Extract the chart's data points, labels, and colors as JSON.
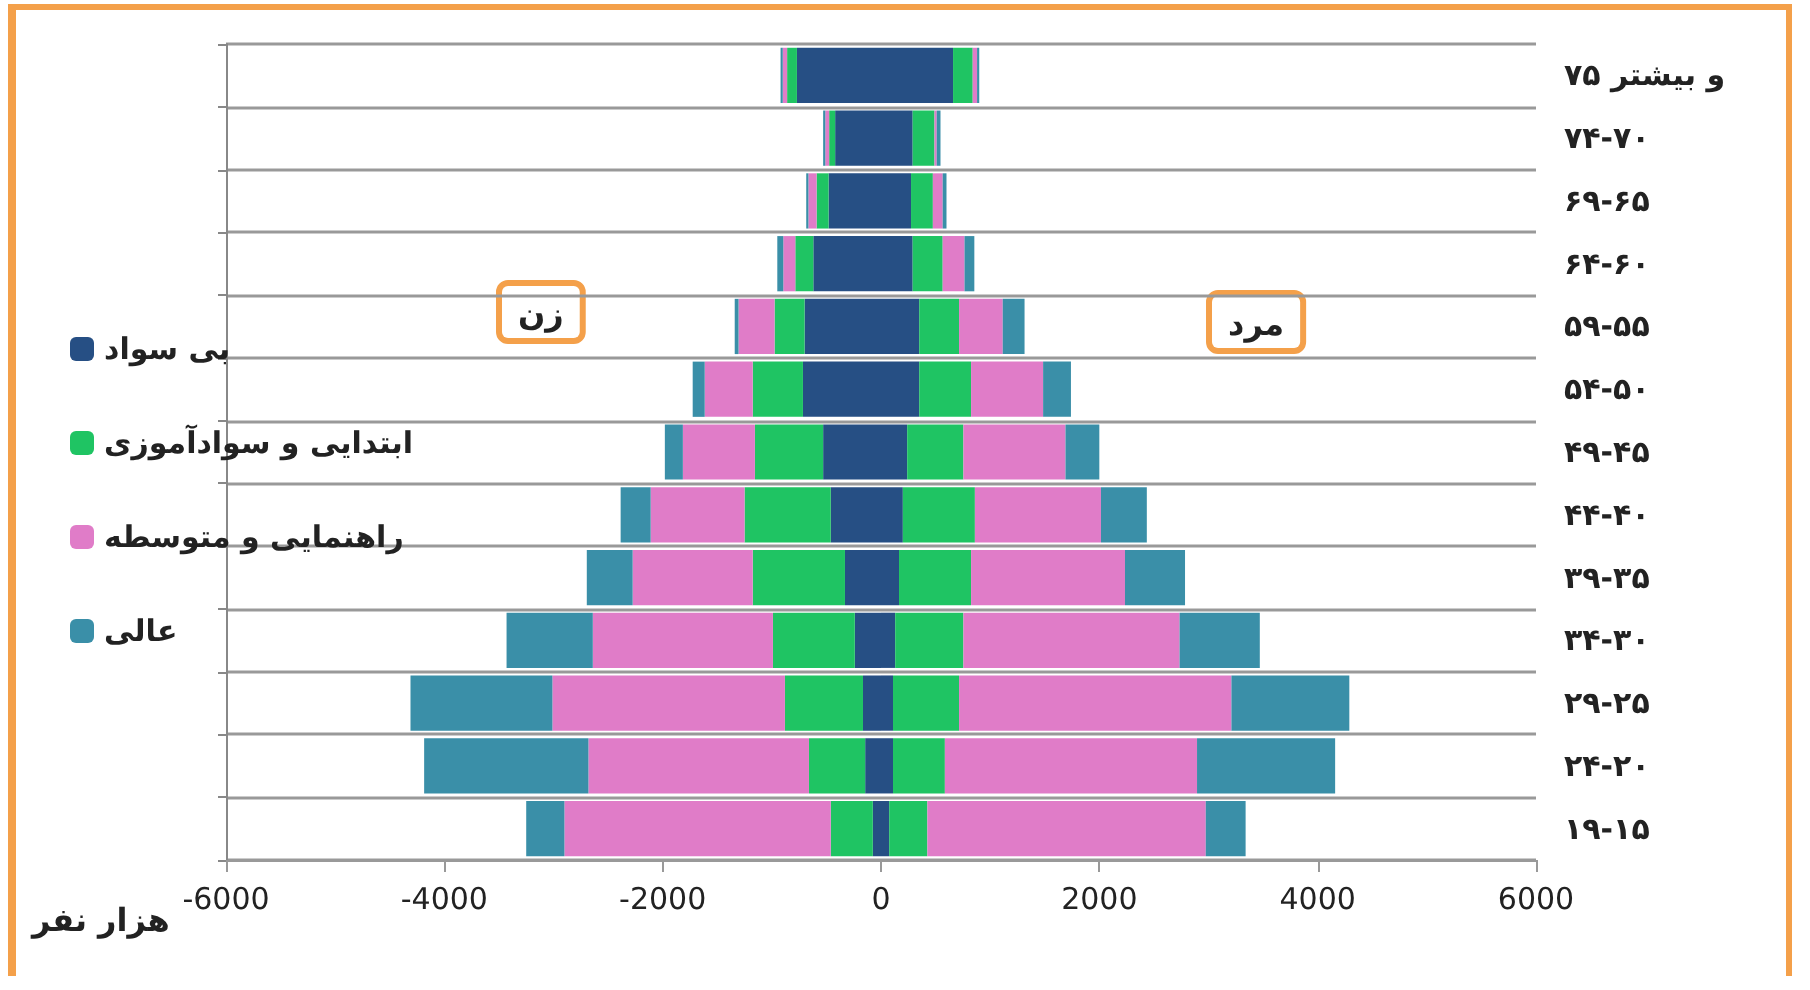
{
  "chart_data": {
    "type": "bar",
    "orientation": "horizontal",
    "stacked": true,
    "categories": [
      "۷۵ و بیشتر",
      "۷۴-۷۰",
      "۶۹-۶۵",
      "۶۴-۶۰",
      "۵۹-۵۵",
      "۵۴-۵۰",
      "۴۹-۴۵",
      "۴۴-۴۰",
      "۳۹-۳۵",
      "۳۴-۳۰",
      "۲۹-۲۵",
      "۲۴-۲۰",
      "۱۹-۱۵"
    ],
    "series": [
      {
        "name": "بی سواد",
        "color": "#264f84",
        "values": [
          -770,
          -420,
          -480,
          -620,
          -700,
          -715,
          -530,
          -460,
          -330,
          -240,
          -165,
          -145,
          -75
        ]
      },
      {
        "name": "ابتدایی و سوادآموزی",
        "color": "#1fc463",
        "values": [
          -90,
          -55,
          -110,
          -165,
          -275,
          -460,
          -625,
          -790,
          -845,
          -750,
          -715,
          -515,
          -385
        ]
      },
      {
        "name": "راهنمایی و متوسطه",
        "color": "#e07cc8",
        "values": [
          -40,
          -35,
          -75,
          -110,
          -330,
          -440,
          -660,
          -860,
          -1100,
          -1650,
          -2130,
          -2020,
          -2440
        ]
      },
      {
        "name": "عالی",
        "color": "#3a8fa8",
        "values": [
          -20,
          -20,
          -20,
          -55,
          -35,
          -110,
          -165,
          -275,
          -420,
          -790,
          -1300,
          -1505,
          -350
        ]
      },
      {
        "color": "#264f84",
        "values": [
          660,
          290,
          275,
          290,
          350,
          350,
          240,
          200,
          165,
          130,
          110,
          110,
          75
        ]
      },
      {
        "color": "#1fc463",
        "values": [
          180,
          200,
          200,
          275,
          365,
          475,
          515,
          660,
          660,
          625,
          605,
          475,
          350
        ]
      },
      {
        "color": "#e07cc8",
        "values": [
          40,
          20,
          90,
          200,
          400,
          660,
          935,
          1155,
          1410,
          1980,
          2495,
          2310,
          2550
        ]
      },
      {
        "color": "#3a8fa8",
        "values": [
          20,
          35,
          35,
          90,
          200,
          255,
          310,
          420,
          550,
          735,
          1080,
          1265,
          365
        ]
      }
    ],
    "xlim": [
      -6000,
      6000
    ],
    "xticks": [
      -6000,
      -4000,
      -2000,
      0,
      2000,
      4000,
      6000
    ],
    "xlabel": "هزار نفر",
    "annotations": [
      "زن",
      "مرد"
    ],
    "grid": "y",
    "legend": "left"
  }
}
